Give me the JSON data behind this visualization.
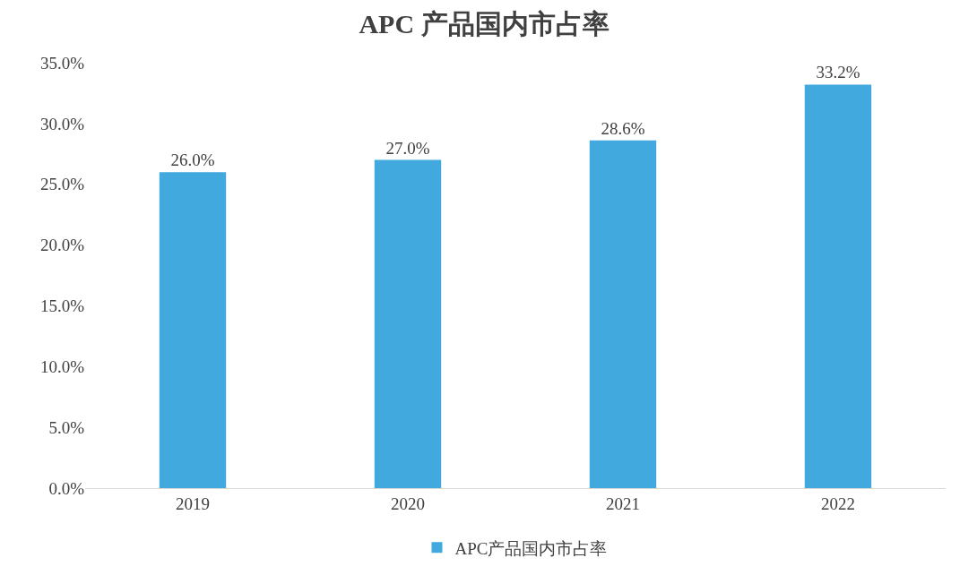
{
  "chart_data": {
    "type": "bar",
    "title": "APC 产品国内市占率",
    "categories": [
      "2019",
      "2020",
      "2021",
      "2022"
    ],
    "series": [
      {
        "name": "APC产品国内市占率",
        "color": "#41a9de",
        "values": [
          26.0,
          27.0,
          28.6,
          33.2
        ],
        "value_labels": [
          "26.0%",
          "27.0%",
          "28.6%",
          "33.2%"
        ]
      }
    ],
    "ylim": [
      0,
      35
    ],
    "yticks": [
      {
        "value": 0,
        "label": "0.0%"
      },
      {
        "value": 5,
        "label": "5.0%"
      },
      {
        "value": 10,
        "label": "10.0%"
      },
      {
        "value": 15,
        "label": "15.0%"
      },
      {
        "value": 20,
        "label": "20.0%"
      },
      {
        "value": 25,
        "label": "25.0%"
      },
      {
        "value": 30,
        "label": "30.0%"
      },
      {
        "value": 35,
        "label": "35.0%"
      }
    ],
    "grid": false,
    "legend": "bottom"
  }
}
